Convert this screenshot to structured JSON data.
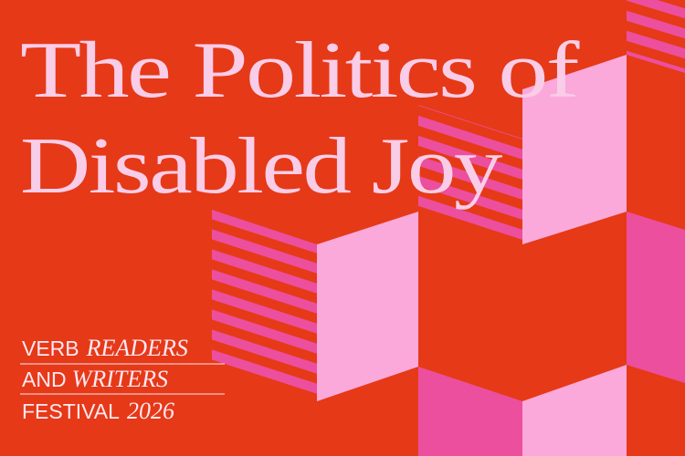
{
  "title": {
    "lines": [
      "The Politics of",
      "Disabled Joy"
    ]
  },
  "logo": {
    "lines": [
      [
        "VERB",
        "READERS"
      ],
      [
        "AND",
        "WRITERS"
      ],
      [
        "FESTIVAL",
        "2026"
      ]
    ]
  }
}
